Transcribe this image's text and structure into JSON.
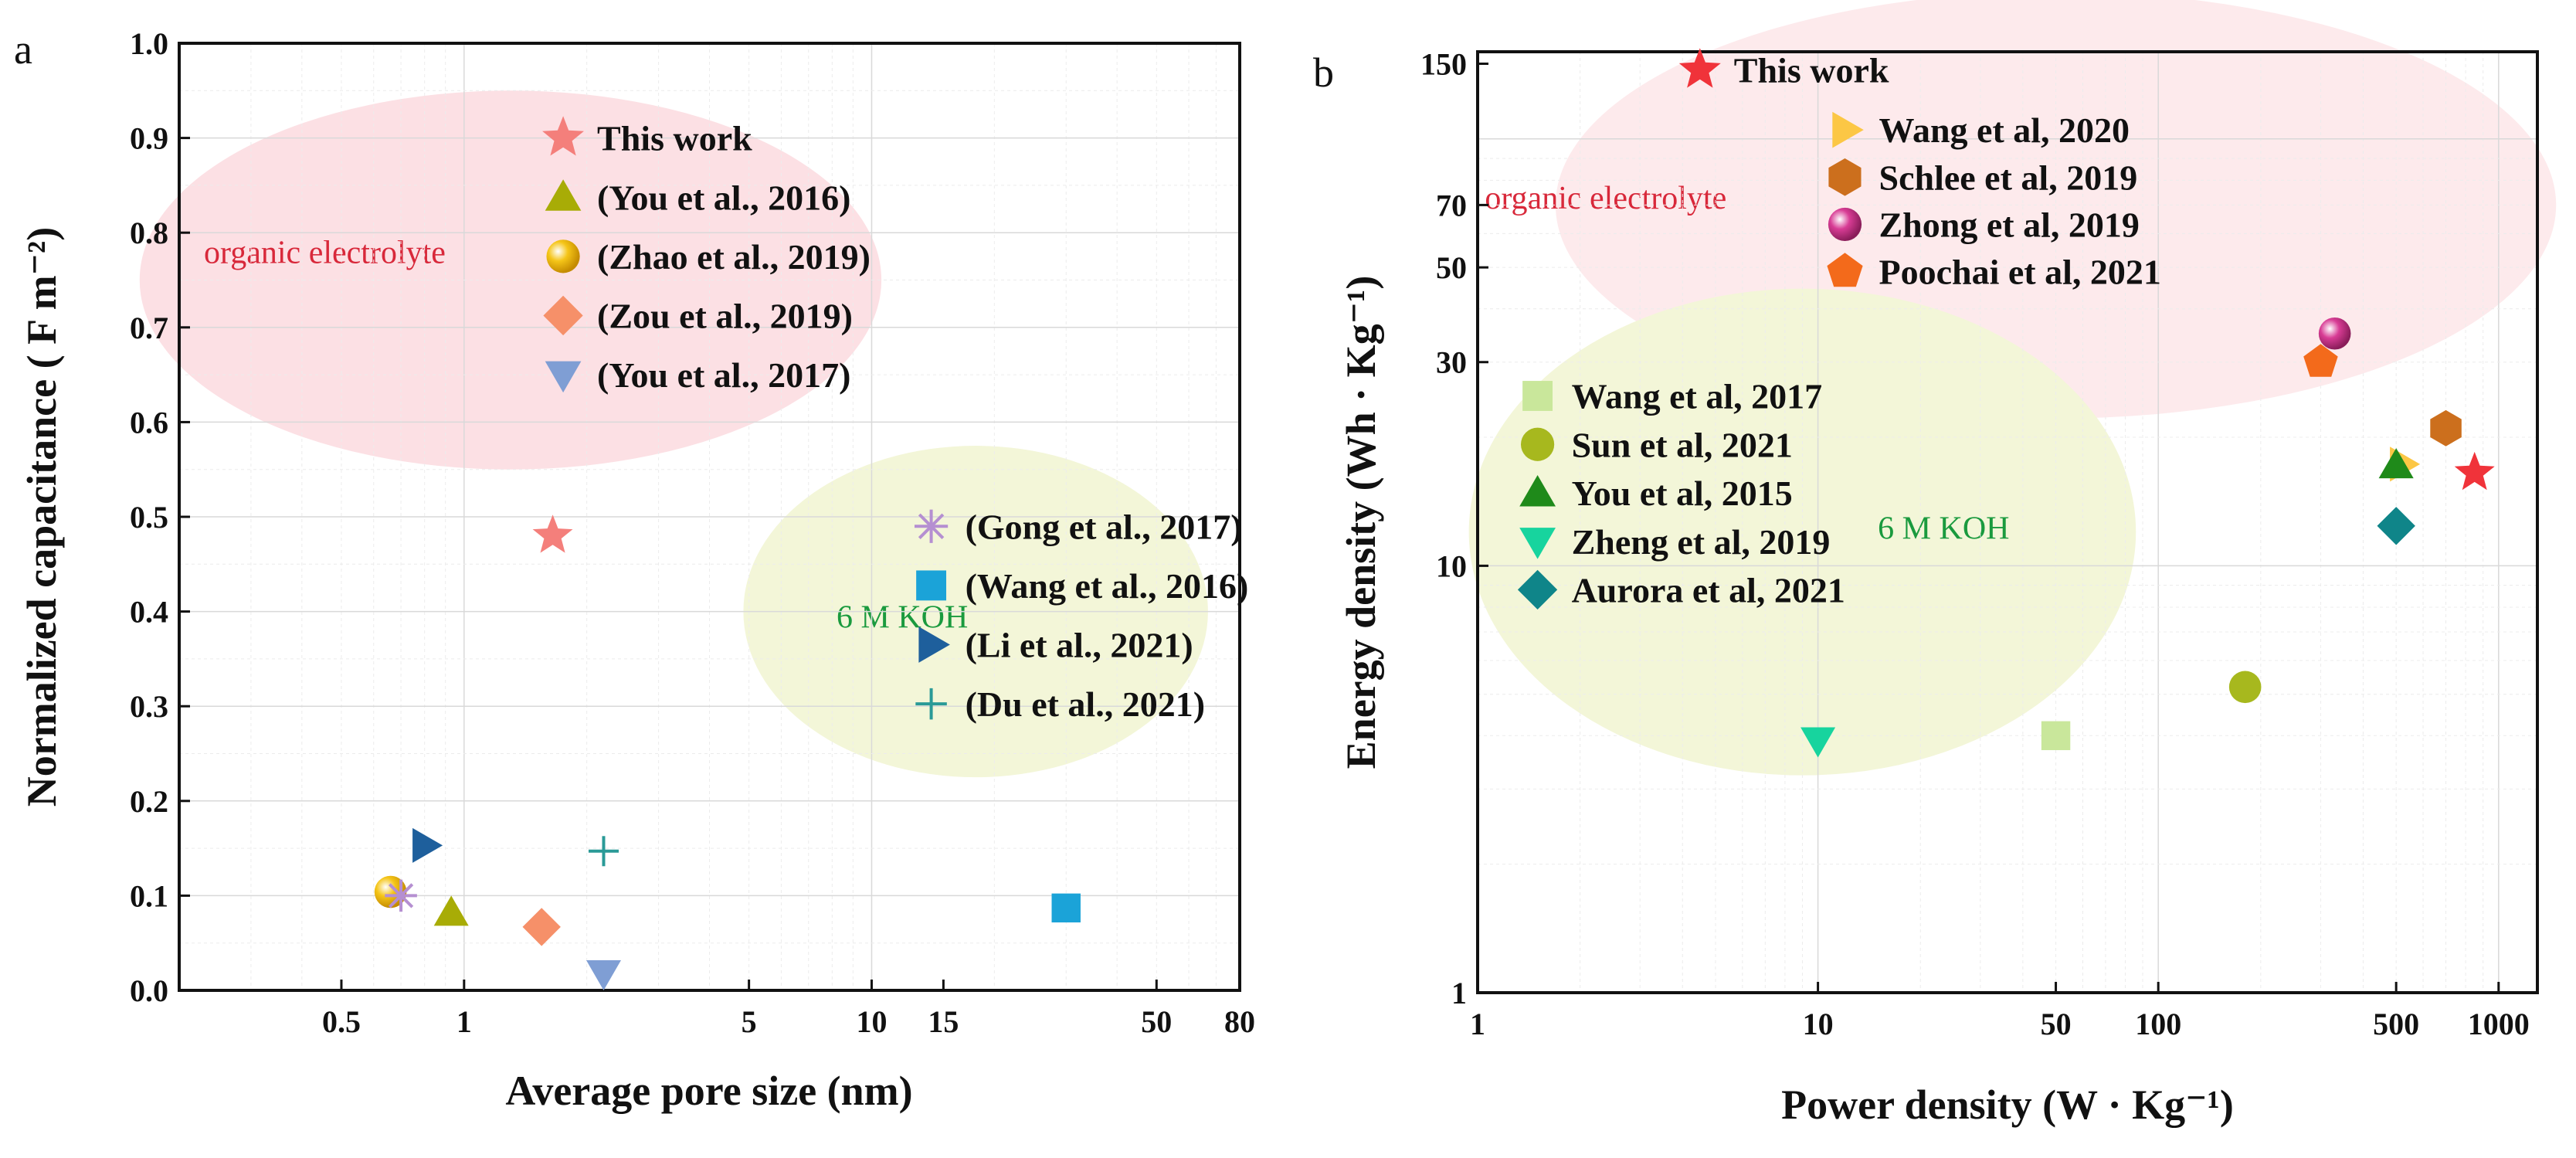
{
  "figure": {
    "background": "#ffffff"
  },
  "chart_data": [
    {
      "id": "a",
      "panel_label": "a",
      "type": "scatter",
      "xscale": "log",
      "xlim": [
        0.2,
        80
      ],
      "ylim": [
        0.0,
        1.0
      ],
      "xlabel": "Average pore size (nm)",
      "ylabel": "Normalized  capacitance ( F m⁻²)",
      "xticks": [
        {
          "value": 0.5,
          "label": "0.5"
        },
        {
          "value": 1,
          "label": "1"
        },
        {
          "value": 5,
          "label": "5"
        },
        {
          "value": 10,
          "label": "10"
        },
        {
          "value": 15,
          "label": "15"
        },
        {
          "value": 50,
          "label": "50"
        },
        {
          "value": 80,
          "label": "80"
        }
      ],
      "yticks": [
        {
          "value": 0.0,
          "label": "0.0"
        },
        {
          "value": 0.1,
          "label": "0.1"
        },
        {
          "value": 0.2,
          "label": "0.2"
        },
        {
          "value": 0.3,
          "label": "0.3"
        },
        {
          "value": 0.4,
          "label": "0.4"
        },
        {
          "value": 0.5,
          "label": "0.5"
        },
        {
          "value": 0.6,
          "label": "0.6"
        },
        {
          "value": 0.7,
          "label": "0.7"
        },
        {
          "value": 0.8,
          "label": "0.8"
        },
        {
          "value": 0.9,
          "label": "0.9"
        },
        {
          "value": 1.0,
          "label": "1.0"
        }
      ],
      "grid": true,
      "regions": [
        {
          "label": "organic electrolyte",
          "color": "#fce0e4",
          "label_color": "#d8283a",
          "cx": 1.3,
          "cy": 0.75,
          "rx_decades": 0.91,
          "ry": 0.2,
          "label_x": 0.23,
          "label_y": 0.78
        },
        {
          "label": "6 M KOH",
          "color": "#f3f6d8",
          "label_color": "#1a9a3e",
          "cx": 18,
          "cy": 0.4,
          "rx_decades": 0.57,
          "ry": 0.175,
          "label_x": 8.2,
          "label_y": 0.395
        }
      ],
      "series": [
        {
          "name": "This work",
          "marker": "star",
          "color": "#f47f7b",
          "points": [
            [
              1.65,
              0.48
            ]
          ]
        },
        {
          "name": "(You et al., 2016)",
          "marker": "triangle-up",
          "color": "#a8ac06",
          "points": [
            [
              0.93,
              0.082
            ]
          ]
        },
        {
          "name": "(Zhao et al., 2019)",
          "marker": "sphere",
          "color": "#f5c518",
          "points": [
            [
              0.66,
              0.104
            ]
          ]
        },
        {
          "name": "(Zou et al., 2019)",
          "marker": "diamond",
          "color": "#f69069",
          "points": [
            [
              1.55,
              0.067
            ]
          ]
        },
        {
          "name": "(You et al., 2017)",
          "marker": "triangle-down",
          "color": "#7f9ed4",
          "points": [
            [
              2.2,
              0.018
            ]
          ]
        },
        {
          "name": "(Gong et al., 2017)",
          "marker": "asterisk",
          "color": "#b58fd1",
          "points": [
            [
              0.7,
              0.1
            ]
          ]
        },
        {
          "name": "(Wang et al., 2016)",
          "marker": "square",
          "color": "#1ba3d8",
          "points": [
            [
              30,
              0.087
            ]
          ]
        },
        {
          "name": "(Li et al., 2021)",
          "marker": "triangle-right",
          "color": "#1e5f9c",
          "points": [
            [
              0.8,
              0.153
            ]
          ]
        },
        {
          "name": "(Du et al., 2021)",
          "marker": "plus",
          "color": "#2a9a97",
          "points": [
            [
              2.2,
              0.147
            ]
          ]
        }
      ],
      "legend_groups": [
        {
          "x": 1.75,
          "y_top": 0.9,
          "y_step": 0.0625,
          "items": [
            0,
            1,
            2,
            3,
            4
          ]
        },
        {
          "x": 14,
          "y_top": 0.49,
          "y_step": 0.0625,
          "items": [
            5,
            6,
            7,
            8
          ]
        }
      ]
    },
    {
      "id": "b",
      "panel_label": "b",
      "type": "scatter",
      "xscale": "log",
      "yscale": "log",
      "xlim": [
        1,
        1300
      ],
      "ylim": [
        1,
        160
      ],
      "xlabel": "Power density (W · Kg⁻¹)",
      "ylabel": "Energy density (Wh · Kg⁻¹)",
      "xticks": [
        {
          "value": 1,
          "label": "1"
        },
        {
          "value": 10,
          "label": "10"
        },
        {
          "value": 50,
          "label": "50"
        },
        {
          "value": 100,
          "label": "100"
        },
        {
          "value": 500,
          "label": "500"
        },
        {
          "value": 1000,
          "label": "1000"
        }
      ],
      "yticks": [
        {
          "value": 1,
          "label": "1"
        },
        {
          "value": 10,
          "label": "10"
        },
        {
          "value": 30,
          "label": "30"
        },
        {
          "value": 50,
          "label": "50"
        },
        {
          "value": 70,
          "label": "70"
        },
        {
          "value": 150,
          "label": "150"
        }
      ],
      "grid": true,
      "regions": [
        {
          "label": "organic electrolyte",
          "color": "#fdeaec",
          "label_color": "#d8283a",
          "cx": 50,
          "cy": 70,
          "rx_decades": 1.47,
          "ry_decades": 0.5,
          "label_x": 1.05,
          "label_y": 73
        },
        {
          "label": "6 M KOH",
          "color": "#f3f6d8",
          "label_color": "#1a9a3e",
          "cx": 9,
          "cy": 12,
          "rx_decades": 0.98,
          "ry_decades": 0.57,
          "label_x": 15,
          "label_y": 12.3
        }
      ],
      "series": [
        {
          "name": "This work",
          "marker": "star",
          "color": "#f0333a",
          "points": [
            [
              850,
              16.5
            ]
          ]
        },
        {
          "name": "Wang et al, 2020",
          "marker": "triangle-right",
          "color": "#fcc745",
          "points": [
            [
              520,
              17.3
            ]
          ]
        },
        {
          "name": "Schlee et al, 2019",
          "marker": "hexagon",
          "color": "#cc6f1d",
          "points": [
            [
              700,
              21
            ]
          ]
        },
        {
          "name": "Zhong et al, 2019",
          "marker": "sphere",
          "color": "#d83c95",
          "points": [
            [
              330,
              35
            ]
          ]
        },
        {
          "name": "Poochai et al, 2021",
          "marker": "pentagon",
          "color": "#f36a1b",
          "points": [
            [
              300,
              30
            ]
          ]
        },
        {
          "name": "Wang et al, 2017",
          "marker": "square",
          "color": "#c9e79b",
          "points": [
            [
              50,
              4
            ]
          ]
        },
        {
          "name": "Sun et al, 2021",
          "marker": "circle",
          "color": "#a7b81e",
          "points": [
            [
              180,
              5.2
            ]
          ]
        },
        {
          "name": "You et al, 2015",
          "marker": "triangle-up",
          "color": "#1f8a1a",
          "points": [
            [
              500,
              17.2
            ]
          ]
        },
        {
          "name": "Zheng et al, 2019",
          "marker": "triangle-down",
          "color": "#17d49e",
          "points": [
            [
              10,
              3.9
            ]
          ]
        },
        {
          "name": "Aurora et al, 2021",
          "marker": "diamond",
          "color": "#0f8589",
          "points": [
            [
              500,
              12.4
            ]
          ]
        }
      ],
      "legend_groups": [
        {
          "x": 4.5,
          "y_top": 145,
          "y_ratio": 1.0,
          "items": [
            0
          ]
        },
        {
          "x": 12,
          "y_top": 105,
          "y_ratio": 0.775,
          "items": [
            1,
            2,
            3,
            4
          ]
        },
        {
          "x": 1.5,
          "y_top": 25,
          "y_ratio": 0.77,
          "items": [
            5,
            6,
            7,
            8,
            9
          ]
        }
      ]
    }
  ]
}
